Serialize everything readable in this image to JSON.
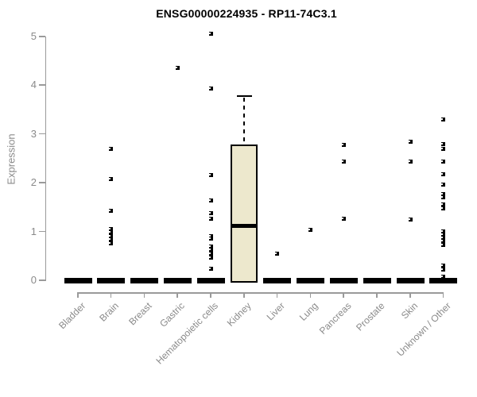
{
  "chart_data": {
    "type": "boxplot",
    "title": "ENSG00000224935 - RP11-74C3.1",
    "ylabel": "Expression",
    "xlabel": "",
    "ylim": [
      0,
      5
    ],
    "yticks": [
      "0",
      "1",
      "2",
      "3",
      "4",
      "5"
    ],
    "grid": false,
    "legend": false,
    "categories": [
      "Bladder",
      "Brain",
      "Breast",
      "Gastric",
      "Hematopoietic cells",
      "Kidney",
      "Liver",
      "Lung",
      "Pancreas",
      "Prostate",
      "Skin",
      "Unknown / Other"
    ],
    "boxes": [
      {
        "category": "Bladder",
        "q1": 0,
        "median": 0,
        "q3": 0,
        "whisker_low": 0,
        "whisker_high": 0
      },
      {
        "category": "Brain",
        "q1": 0,
        "median": 0,
        "q3": 0,
        "whisker_low": 0,
        "whisker_high": 0
      },
      {
        "category": "Breast",
        "q1": 0,
        "median": 0,
        "q3": 0,
        "whisker_low": 0,
        "whisker_high": 0
      },
      {
        "category": "Gastric",
        "q1": 0,
        "median": 0,
        "q3": 0,
        "whisker_low": 0,
        "whisker_high": 0
      },
      {
        "category": "Hematopoietic cells",
        "q1": 0,
        "median": 0,
        "q3": 0,
        "whisker_low": 0,
        "whisker_high": 0
      },
      {
        "category": "Kidney",
        "q1": 0,
        "median": 1.12,
        "q3": 2.78,
        "whisker_low": 0,
        "whisker_high": 3.8
      },
      {
        "category": "Liver",
        "q1": 0,
        "median": 0,
        "q3": 0,
        "whisker_low": 0,
        "whisker_high": 0
      },
      {
        "category": "Lung",
        "q1": 0,
        "median": 0,
        "q3": 0,
        "whisker_low": 0,
        "whisker_high": 0
      },
      {
        "category": "Pancreas",
        "q1": 0,
        "median": 0,
        "q3": 0,
        "whisker_low": 0,
        "whisker_high": 0
      },
      {
        "category": "Prostate",
        "q1": 0,
        "median": 0,
        "q3": 0,
        "whisker_low": 0,
        "whisker_high": 0
      },
      {
        "category": "Skin",
        "q1": 0,
        "median": 0,
        "q3": 0,
        "whisker_low": 0,
        "whisker_high": 0
      },
      {
        "category": "Unknown / Other",
        "q1": 0,
        "median": 0,
        "q3": 0,
        "whisker_low": 0,
        "whisker_high": 0
      }
    ],
    "outliers": [
      [],
      [
        2.7,
        2.08,
        1.43,
        1.05,
        0.98,
        0.91,
        0.84,
        0.76
      ],
      [],
      [
        4.36
      ],
      [
        5.06,
        3.94,
        2.15,
        1.63,
        1.38,
        1.27,
        0.91,
        0.86,
        0.7,
        0.62,
        0.54,
        0.46,
        0.24
      ],
      [],
      [
        0.55
      ],
      [
        1.04
      ],
      [
        2.77,
        2.44,
        1.27
      ],
      [],
      [
        2.85,
        2.43,
        1.24
      ],
      [
        3.3,
        2.79,
        2.7,
        2.43,
        2.18,
        1.97,
        1.77,
        1.7,
        1.55,
        1.48,
        1.0,
        0.93,
        0.87,
        0.8,
        0.72,
        0.3,
        0.22,
        0.07
      ]
    ],
    "colors": {
      "box_fill": "#ede8cd",
      "box_border": "#000000",
      "median": "#000000",
      "point": "#000000",
      "axis": "#9a9a9a",
      "tick_label": "#8a8a8a",
      "title": "#000000"
    }
  }
}
